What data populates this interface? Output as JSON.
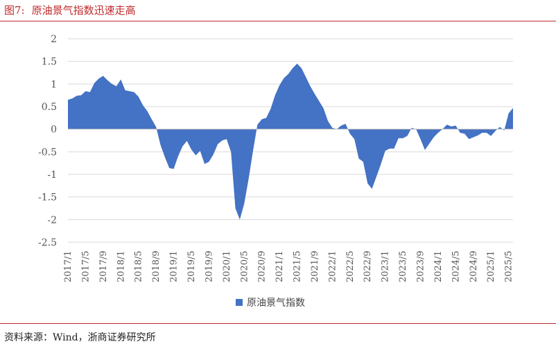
{
  "figure": {
    "number": "图7:",
    "title": "原油景气指数迅速走高",
    "source": "资料来源：Wind，浙商证券研究所"
  },
  "colors": {
    "accent": "#c0292b",
    "series": "#4472c4"
  },
  "chart_data": {
    "type": "area",
    "title": "原油景气指数迅速走高",
    "ylim": [
      -2.5,
      2
    ],
    "yticks": [
      "2",
      "1.5",
      "1",
      "0.5",
      "0",
      "-0.5",
      "-1",
      "-1.5",
      "-2",
      "-2.5"
    ],
    "grid": true,
    "legend_position": "bottom",
    "x_tick_labels": [
      "2017/1",
      "2017/5",
      "2017/9",
      "2018/1",
      "2018/5",
      "2018/9",
      "2019/1",
      "2019/5",
      "2019/9",
      "2020/1",
      "2020/5",
      "2020/9",
      "2021/1",
      "2021/5",
      "2021/9",
      "2022/1",
      "2022/5",
      "2022/9",
      "2023/1",
      "2023/5",
      "2023/9",
      "2024/1",
      "2024/5",
      "2024/9",
      "2025/1",
      "2025/5"
    ],
    "series": [
      {
        "name": "原油景气指数",
        "x": [
          "2017/1",
          "2017/2",
          "2017/3",
          "2017/4",
          "2017/5",
          "2017/6",
          "2017/7",
          "2017/8",
          "2017/9",
          "2017/10",
          "2017/11",
          "2017/12",
          "2018/1",
          "2018/2",
          "2018/3",
          "2018/4",
          "2018/5",
          "2018/6",
          "2018/7",
          "2018/8",
          "2018/9",
          "2018/10",
          "2018/11",
          "2018/12",
          "2019/1",
          "2019/2",
          "2019/3",
          "2019/4",
          "2019/5",
          "2019/6",
          "2019/7",
          "2019/8",
          "2019/9",
          "2019/10",
          "2019/11",
          "2019/12",
          "2020/1",
          "2020/2",
          "2020/3",
          "2020/4",
          "2020/5",
          "2020/6",
          "2020/7",
          "2020/8",
          "2020/9",
          "2020/10",
          "2020/11",
          "2020/12",
          "2021/1",
          "2021/2",
          "2021/3",
          "2021/4",
          "2021/5",
          "2021/6",
          "2021/7",
          "2021/8",
          "2021/9",
          "2021/10",
          "2021/11",
          "2021/12",
          "2022/1",
          "2022/2",
          "2022/3",
          "2022/4",
          "2022/5",
          "2022/6",
          "2022/7",
          "2022/8",
          "2022/9",
          "2022/10",
          "2022/11",
          "2022/12",
          "2023/1",
          "2023/2",
          "2023/3",
          "2023/4",
          "2023/5",
          "2023/6",
          "2023/7",
          "2023/8",
          "2023/9",
          "2023/10",
          "2023/11",
          "2023/12",
          "2024/1",
          "2024/2",
          "2024/3",
          "2024/4",
          "2024/5",
          "2024/6",
          "2024/7",
          "2024/8",
          "2024/9",
          "2024/10",
          "2024/11",
          "2024/12",
          "2025/1",
          "2025/2",
          "2025/3",
          "2025/4",
          "2025/5",
          "2025/6"
        ],
        "values": [
          0.65,
          0.68,
          0.74,
          0.75,
          0.84,
          0.82,
          1.02,
          1.12,
          1.18,
          1.08,
          1.0,
          0.95,
          1.1,
          0.86,
          0.84,
          0.82,
          0.72,
          0.53,
          0.4,
          0.22,
          0.05,
          -0.35,
          -0.62,
          -0.86,
          -0.88,
          -0.6,
          -0.38,
          -0.26,
          -0.45,
          -0.58,
          -0.48,
          -0.77,
          -0.72,
          -0.56,
          -0.33,
          -0.25,
          -0.22,
          -0.5,
          -1.75,
          -2.0,
          -1.65,
          -1.1,
          -0.48,
          0.1,
          0.22,
          0.25,
          0.45,
          0.75,
          0.97,
          1.13,
          1.22,
          1.35,
          1.45,
          1.35,
          1.15,
          0.95,
          0.78,
          0.62,
          0.46,
          0.18,
          0.03,
          0.0,
          0.08,
          0.12,
          -0.1,
          -0.22,
          -0.65,
          -0.72,
          -1.2,
          -1.32,
          -1.05,
          -0.78,
          -0.48,
          -0.43,
          -0.43,
          -0.2,
          -0.2,
          -0.15,
          0.03,
          0.0,
          -0.22,
          -0.46,
          -0.32,
          -0.18,
          -0.08,
          0.0,
          0.1,
          0.06,
          0.08,
          -0.08,
          -0.1,
          -0.22,
          -0.18,
          -0.14,
          -0.08,
          -0.08,
          -0.15,
          -0.04,
          0.05,
          -0.03,
          0.35,
          0.47
        ]
      }
    ]
  }
}
